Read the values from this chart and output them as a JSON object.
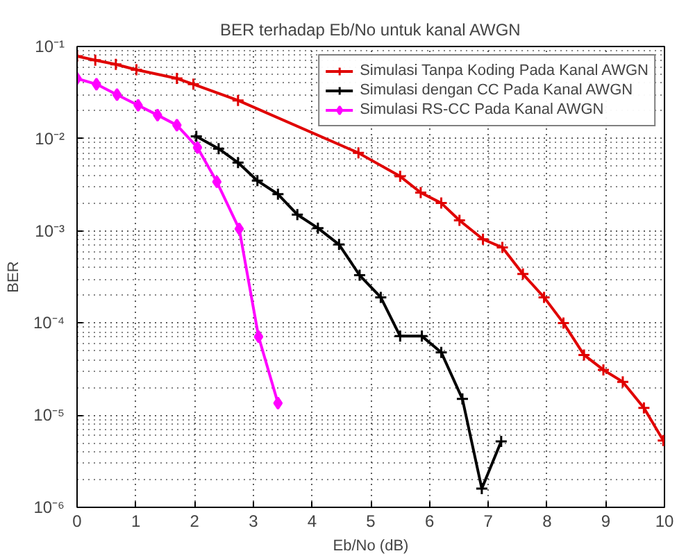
{
  "chart_data": {
    "type": "line",
    "title": "BER terhadap Eb/No untuk kanal AWGN",
    "xlabel": "Eb/No (dB)",
    "ylabel": "BER",
    "xlim": [
      0,
      10
    ],
    "xticks": [
      0,
      1,
      2,
      3,
      4,
      5,
      6,
      7,
      8,
      9,
      10
    ],
    "ylim": [
      1e-06,
      0.1
    ],
    "yticks": [
      {
        "value": 1e-06,
        "label": "10⁻⁶"
      },
      {
        "value": 1e-05,
        "label": "10⁻⁵"
      },
      {
        "value": 0.0001,
        "label": "10⁻⁴"
      },
      {
        "value": 0.001,
        "label": "10⁻³"
      },
      {
        "value": 0.01,
        "label": "10⁻²"
      },
      {
        "value": 0.1,
        "label": "10⁻¹"
      }
    ],
    "log": "y",
    "grid": true,
    "legend": "top right",
    "line_style": "solid",
    "series": [
      {
        "name": "Simulasi Tanpa Koding Pada Kanal AWGN",
        "color": "#e00000",
        "marker": "cross",
        "x": [
          0,
          0.31,
          0.66,
          1.01,
          1.7,
          1.98,
          2.74,
          4.79,
          5.5,
          5.85,
          6.2,
          6.51,
          6.91,
          7.24,
          7.59,
          7.95,
          8.28,
          8.63,
          8.96,
          9.29,
          9.65,
          9.98
        ],
        "values": [
          0.0785,
          0.071,
          0.064,
          0.056,
          0.045,
          0.039,
          0.026,
          0.007,
          0.0039,
          0.0026,
          0.002,
          0.0013,
          0.00081,
          0.00066,
          0.00034,
          0.00019,
          0.0001,
          4.5e-05,
          3.1e-05,
          2.3e-05,
          1.2e-05,
          5.3e-06
        ]
      },
      {
        "name": "Simulasi dengan CC Pada Kanal AWGN",
        "color": "#000000",
        "marker": "cross",
        "x": [
          2.03,
          2.41,
          2.74,
          3.07,
          3.42,
          3.75,
          4.1,
          4.46,
          4.81,
          5.17,
          5.5,
          5.87,
          6.2,
          6.56,
          6.89,
          7.22
        ],
        "values": [
          0.0106,
          0.0078,
          0.0055,
          0.0035,
          0.0025,
          0.0015,
          0.00107,
          0.00071,
          0.00033,
          0.00019,
          7.2e-05,
          7.2e-05,
          4.8e-05,
          1.5e-05,
          1.6e-06,
          5.2e-06
        ]
      },
      {
        "name": "Simulasi RS-CC Pada Kanal AWGN",
        "color": "#ff00ff",
        "marker": "diamond",
        "x": [
          0,
          0.33,
          0.68,
          1.04,
          1.37,
          1.7,
          2.05,
          2.38,
          2.76,
          3.09,
          3.42
        ],
        "values": [
          0.045,
          0.039,
          0.03,
          0.023,
          0.018,
          0.014,
          0.008,
          0.0034,
          0.00105,
          7.1e-05,
          1.35e-05
        ]
      }
    ]
  }
}
